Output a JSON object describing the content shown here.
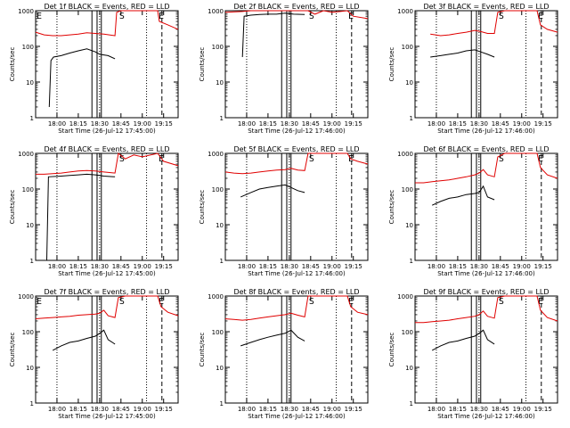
{
  "colors": {
    "events": "#000000",
    "lld": "#e00000",
    "axes": "#000000"
  },
  "chart_data": [
    {
      "type": "line",
      "title": "Det 1f BLACK = Events, RED = LLD",
      "xlabel": "Start Time (26-Jul-12 17:45:00)",
      "ylabel": "Counts/sec",
      "xlim": [
        17.75,
        19.42
      ],
      "ylim": [
        1,
        1000
      ],
      "yscale": "log",
      "xticks": [
        "18:00",
        "18:15",
        "18:30",
        "18:45",
        "19:00",
        "19:15"
      ],
      "yticks": [
        "1",
        "10",
        "100",
        "1000"
      ],
      "markers": [
        {
          "label": "E",
          "t": 17.75
        },
        {
          "label": "S",
          "t": 18.72
        },
        {
          "label": "E",
          "t": 19.18
        }
      ],
      "dotted": [
        18.0,
        18.5,
        19.05
      ],
      "solid": [
        18.41,
        18.47,
        18.52
      ],
      "dashed": [
        19.23
      ],
      "series": [
        {
          "name": "BLACK = Events",
          "x": [
            17.91,
            17.93,
            17.96,
            18.05,
            18.15,
            18.25,
            18.35,
            18.45,
            18.5,
            18.6,
            18.68
          ],
          "y": [
            2,
            40,
            50,
            55,
            65,
            75,
            85,
            70,
            60,
            55,
            45
          ]
        },
        {
          "name": "RED = LLD",
          "x": [
            17.75,
            17.85,
            17.95,
            18.05,
            18.15,
            18.25,
            18.35,
            18.45,
            18.55,
            18.68,
            18.7,
            18.75,
            19.18,
            19.2,
            19.3,
            19.42
          ],
          "y": [
            250,
            210,
            200,
            200,
            210,
            220,
            240,
            230,
            220,
            200,
            900,
            1000,
            1000,
            500,
            400,
            300
          ]
        }
      ]
    },
    {
      "type": "line",
      "title": "Det 2f BLACK = Events, RED = LLD",
      "xlabel": "Start Time (26-Jul-12 17:46:00)",
      "ylabel": "Counts/sec",
      "xlim": [
        17.75,
        19.42
      ],
      "ylim": [
        1,
        1000
      ],
      "yscale": "log",
      "xticks": [
        "18:00",
        "18:15",
        "18:30",
        "18:45",
        "19:00",
        "19:15"
      ],
      "yticks": [
        "1",
        "10",
        "100",
        "1000"
      ],
      "markers": [
        {
          "label": "S",
          "t": 18.72
        },
        {
          "label": "E",
          "t": 19.18
        }
      ],
      "dotted": [
        18.0,
        18.5,
        19.05
      ],
      "solid": [
        18.41,
        18.47,
        18.52
      ],
      "dashed": [
        19.23
      ],
      "series": [
        {
          "name": "BLACK = Events",
          "x": [
            17.95,
            17.97,
            18.05,
            18.15,
            18.25,
            18.35,
            18.45,
            18.55,
            18.68
          ],
          "y": [
            50,
            700,
            750,
            780,
            800,
            800,
            850,
            800,
            780
          ]
        },
        {
          "name": "RED = LLD",
          "x": [
            17.75,
            17.95,
            18.05,
            18.15,
            18.25,
            18.35,
            18.45,
            18.55,
            18.68,
            18.72,
            18.8,
            18.9,
            19.0,
            19.18,
            19.25,
            19.42
          ],
          "y": [
            900,
            950,
            1000,
            1000,
            1000,
            1000,
            1000,
            1000,
            1000,
            1000,
            800,
            1000,
            900,
            1000,
            700,
            600
          ]
        }
      ]
    },
    {
      "type": "line",
      "title": "Det 3f BLACK = Events, RED = LLD",
      "xlabel": "Start Time (26-Jul-12 17:46:00)",
      "ylabel": "Counts/sec",
      "xlim": [
        17.75,
        19.42
      ],
      "ylim": [
        1,
        1000
      ],
      "yscale": "log",
      "xticks": [
        "18:00",
        "18:15",
        "18:30",
        "18:45",
        "19:00",
        "19:15"
      ],
      "yticks": [
        "1",
        "10",
        "100",
        "1000"
      ],
      "markers": [
        {
          "label": "S",
          "t": 18.72
        },
        {
          "label": "E",
          "t": 19.18
        }
      ],
      "dotted": [
        18.0,
        18.5,
        19.05
      ],
      "solid": [
        18.41,
        18.47,
        18.52
      ],
      "dashed": [
        19.23
      ],
      "series": [
        {
          "name": "BLACK = Events",
          "x": [
            17.93,
            18.05,
            18.15,
            18.25,
            18.35,
            18.45,
            18.52,
            18.6,
            18.68
          ],
          "y": [
            50,
            55,
            60,
            65,
            75,
            80,
            70,
            60,
            50
          ]
        },
        {
          "name": "RED = LLD",
          "x": [
            17.93,
            18.05,
            18.15,
            18.25,
            18.35,
            18.45,
            18.52,
            18.6,
            18.68,
            18.72,
            18.8,
            19.18,
            19.22,
            19.3,
            19.42
          ],
          "y": [
            220,
            200,
            210,
            230,
            250,
            280,
            260,
            230,
            230,
            900,
            1000,
            1000,
            400,
            300,
            250
          ]
        }
      ]
    },
    {
      "type": "line",
      "title": "Det 4f BLACK = Events, RED = LLD",
      "xlabel": "Start Time (26-Jul-12 17:45:00)",
      "ylabel": "Counts/sec",
      "xlim": [
        17.75,
        19.42
      ],
      "ylim": [
        1,
        1000
      ],
      "yscale": "log",
      "xticks": [
        "18:00",
        "18:15",
        "18:30",
        "18:45",
        "19:00",
        "19:15"
      ],
      "yticks": [
        "1",
        "10",
        "100",
        "1000"
      ],
      "markers": [
        {
          "label": "S",
          "t": 18.72
        },
        {
          "label": "E",
          "t": 19.18
        }
      ],
      "dotted": [
        18.0,
        18.5,
        19.05
      ],
      "solid": [
        18.41,
        18.47,
        18.52
      ],
      "dashed": [
        19.23
      ],
      "series": [
        {
          "name": "BLACK = Events",
          "x": [
            17.88,
            17.9,
            18.05,
            18.15,
            18.25,
            18.35,
            18.45,
            18.55,
            18.68
          ],
          "y": [
            1,
            220,
            230,
            240,
            250,
            260,
            250,
            230,
            220
          ]
        },
        {
          "name": "RED = LLD",
          "x": [
            17.75,
            17.85,
            17.95,
            18.05,
            18.15,
            18.25,
            18.35,
            18.45,
            18.55,
            18.68,
            18.72,
            18.8,
            18.9,
            19.0,
            19.18,
            19.25,
            19.42
          ],
          "y": [
            260,
            260,
            270,
            280,
            300,
            320,
            330,
            320,
            300,
            280,
            1000,
            700,
            900,
            800,
            1000,
            600,
            450
          ]
        }
      ]
    },
    {
      "type": "line",
      "title": "Det 5f BLACK = Events, RED = LLD",
      "xlabel": "Start Time (26-Jul-12 17:46:00)",
      "ylabel": "Counts/sec",
      "xlim": [
        17.75,
        19.42
      ],
      "ylim": [
        1,
        1000
      ],
      "yscale": "log",
      "xticks": [
        "18:00",
        "18:15",
        "18:30",
        "18:45",
        "19:00",
        "19:15"
      ],
      "yticks": [
        "1",
        "10",
        "100",
        "1000"
      ],
      "markers": [
        {
          "label": "S",
          "t": 18.72
        },
        {
          "label": "E",
          "t": 19.18
        }
      ],
      "dotted": [
        18.0,
        18.5,
        19.05
      ],
      "solid": [
        18.41,
        18.47,
        18.52
      ],
      "dashed": [
        19.23
      ],
      "series": [
        {
          "name": "BLACK = Events",
          "x": [
            17.93,
            18.05,
            18.15,
            18.25,
            18.35,
            18.45,
            18.52,
            18.6,
            18.68
          ],
          "y": [
            60,
            80,
            100,
            110,
            120,
            130,
            110,
            90,
            80
          ]
        },
        {
          "name": "RED = LLD",
          "x": [
            17.75,
            17.85,
            17.95,
            18.05,
            18.15,
            18.25,
            18.35,
            18.45,
            18.52,
            18.6,
            18.68,
            18.72,
            18.8,
            19.18,
            19.22,
            19.3,
            19.42
          ],
          "y": [
            300,
            280,
            270,
            280,
            300,
            320,
            340,
            350,
            380,
            340,
            330,
            1000,
            1000,
            1000,
            700,
            600,
            500
          ]
        }
      ]
    },
    {
      "type": "line",
      "title": "Det 6f BLACK = Events, RED = LLD",
      "xlabel": "Start Time (26-Jul-12 17:46:00)",
      "ylabel": "Counts/sec",
      "xlim": [
        17.75,
        19.42
      ],
      "ylim": [
        1,
        1000
      ],
      "yscale": "log",
      "xticks": [
        "18:00",
        "18:15",
        "18:30",
        "18:45",
        "19:00",
        "19:15"
      ],
      "yticks": [
        "1",
        "10",
        "100",
        "1000"
      ],
      "markers": [
        {
          "label": "S",
          "t": 18.72
        },
        {
          "label": "E",
          "t": 19.18
        }
      ],
      "dotted": [
        18.0,
        18.5,
        19.05
      ],
      "solid": [
        18.41,
        18.47,
        18.52
      ],
      "dashed": [
        19.23
      ],
      "series": [
        {
          "name": "BLACK = Events",
          "x": [
            17.95,
            18.05,
            18.15,
            18.25,
            18.35,
            18.45,
            18.5,
            18.55,
            18.6,
            18.68
          ],
          "y": [
            35,
            45,
            55,
            60,
            70,
            75,
            80,
            120,
            60,
            50
          ]
        },
        {
          "name": "RED = LLD",
          "x": [
            17.75,
            17.85,
            17.95,
            18.05,
            18.15,
            18.25,
            18.35,
            18.45,
            18.5,
            18.55,
            18.6,
            18.68,
            18.72,
            18.8,
            19.18,
            19.22,
            19.3,
            19.42
          ],
          "y": [
            150,
            150,
            160,
            170,
            180,
            200,
            220,
            250,
            280,
            350,
            250,
            220,
            800,
            1000,
            1000,
            400,
            250,
            200
          ]
        }
      ]
    },
    {
      "type": "line",
      "title": "Det 7f BLACK = Events, RED = LLD",
      "xlabel": "Start Time (26-Jul-12 17:45:00)",
      "ylabel": "Counts/sec",
      "xlim": [
        17.75,
        19.42
      ],
      "ylim": [
        1,
        1000
      ],
      "yscale": "log",
      "xticks": [
        "18:00",
        "18:15",
        "18:30",
        "18:45",
        "19:00",
        "19:15"
      ],
      "yticks": [
        "1",
        "10",
        "100",
        "1000"
      ],
      "markers": [
        {
          "label": "E",
          "t": 17.75
        },
        {
          "label": "S",
          "t": 18.72
        },
        {
          "label": "E",
          "t": 19.18
        }
      ],
      "dotted": [
        18.0,
        18.5,
        19.05
      ],
      "solid": [
        18.41,
        18.47,
        18.52
      ],
      "dashed": [
        19.23
      ],
      "series": [
        {
          "name": "BLACK = Events",
          "x": [
            17.95,
            18.05,
            18.15,
            18.25,
            18.35,
            18.45,
            18.5,
            18.55,
            18.6,
            18.68
          ],
          "y": [
            30,
            40,
            50,
            55,
            65,
            75,
            90,
            110,
            60,
            45
          ]
        },
        {
          "name": "RED = LLD",
          "x": [
            17.75,
            17.85,
            17.95,
            18.05,
            18.15,
            18.25,
            18.35,
            18.45,
            18.5,
            18.55,
            18.6,
            18.68,
            18.72,
            18.8,
            19.18,
            19.22,
            19.3,
            19.42
          ],
          "y": [
            230,
            240,
            250,
            260,
            270,
            290,
            300,
            310,
            330,
            400,
            280,
            250,
            900,
            1000,
            1000,
            500,
            350,
            280
          ]
        }
      ]
    },
    {
      "type": "line",
      "title": "Det 8f BLACK = Events, RED = LLD",
      "xlabel": "Start Time (26-Jul-12 17:46:00)",
      "ylabel": "Counts/sec",
      "xlim": [
        17.75,
        19.42
      ],
      "ylim": [
        1,
        1000
      ],
      "yscale": "log",
      "xticks": [
        "18:00",
        "18:15",
        "18:30",
        "18:45",
        "19:00",
        "19:15"
      ],
      "yticks": [
        "1",
        "10",
        "100",
        "1000"
      ],
      "markers": [
        {
          "label": "S",
          "t": 18.72
        },
        {
          "label": "E",
          "t": 19.18
        }
      ],
      "dotted": [
        18.0,
        18.5,
        19.05
      ],
      "solid": [
        18.41,
        18.47,
        18.52
      ],
      "dashed": [
        19.23
      ],
      "series": [
        {
          "name": "BLACK = Events",
          "x": [
            17.93,
            18.05,
            18.15,
            18.25,
            18.35,
            18.45,
            18.52,
            18.6,
            18.68
          ],
          "y": [
            40,
            50,
            60,
            70,
            80,
            90,
            110,
            70,
            55
          ]
        },
        {
          "name": "RED = LLD",
          "x": [
            17.75,
            17.85,
            17.95,
            18.05,
            18.15,
            18.25,
            18.35,
            18.45,
            18.52,
            18.6,
            18.68,
            18.72,
            18.8,
            19.18,
            19.22,
            19.3,
            19.42
          ],
          "y": [
            230,
            220,
            210,
            220,
            240,
            260,
            280,
            300,
            330,
            290,
            260,
            1000,
            1000,
            1000,
            500,
            350,
            300
          ]
        }
      ]
    },
    {
      "type": "line",
      "title": "Det 9f BLACK = Events, RED = LLD",
      "xlabel": "Start Time (26-Jul-12 17:46:00)",
      "ylabel": "Counts/sec",
      "xlim": [
        17.75,
        19.42
      ],
      "ylim": [
        1,
        1000
      ],
      "yscale": "log",
      "xticks": [
        "18:00",
        "18:15",
        "18:30",
        "18:45",
        "19:00",
        "19:15"
      ],
      "yticks": [
        "1",
        "10",
        "100",
        "1000"
      ],
      "markers": [
        {
          "label": "S",
          "t": 18.72
        },
        {
          "label": "E",
          "t": 19.18
        }
      ],
      "dotted": [
        18.0,
        18.5,
        19.05
      ],
      "solid": [
        18.41,
        18.47,
        18.52
      ],
      "dashed": [
        19.23
      ],
      "series": [
        {
          "name": "BLACK = Events",
          "x": [
            17.95,
            18.05,
            18.15,
            18.25,
            18.35,
            18.45,
            18.5,
            18.55,
            18.6,
            18.68
          ],
          "y": [
            30,
            40,
            50,
            55,
            65,
            75,
            90,
            110,
            60,
            45
          ]
        },
        {
          "name": "RED = LLD",
          "x": [
            17.75,
            17.85,
            17.95,
            18.05,
            18.15,
            18.25,
            18.35,
            18.45,
            18.5,
            18.55,
            18.6,
            18.68,
            18.72,
            18.8,
            19.18,
            19.22,
            19.3,
            19.42
          ],
          "y": [
            180,
            180,
            190,
            200,
            210,
            230,
            250,
            270,
            300,
            380,
            270,
            240,
            900,
            1000,
            1000,
            400,
            250,
            200
          ]
        }
      ]
    }
  ]
}
